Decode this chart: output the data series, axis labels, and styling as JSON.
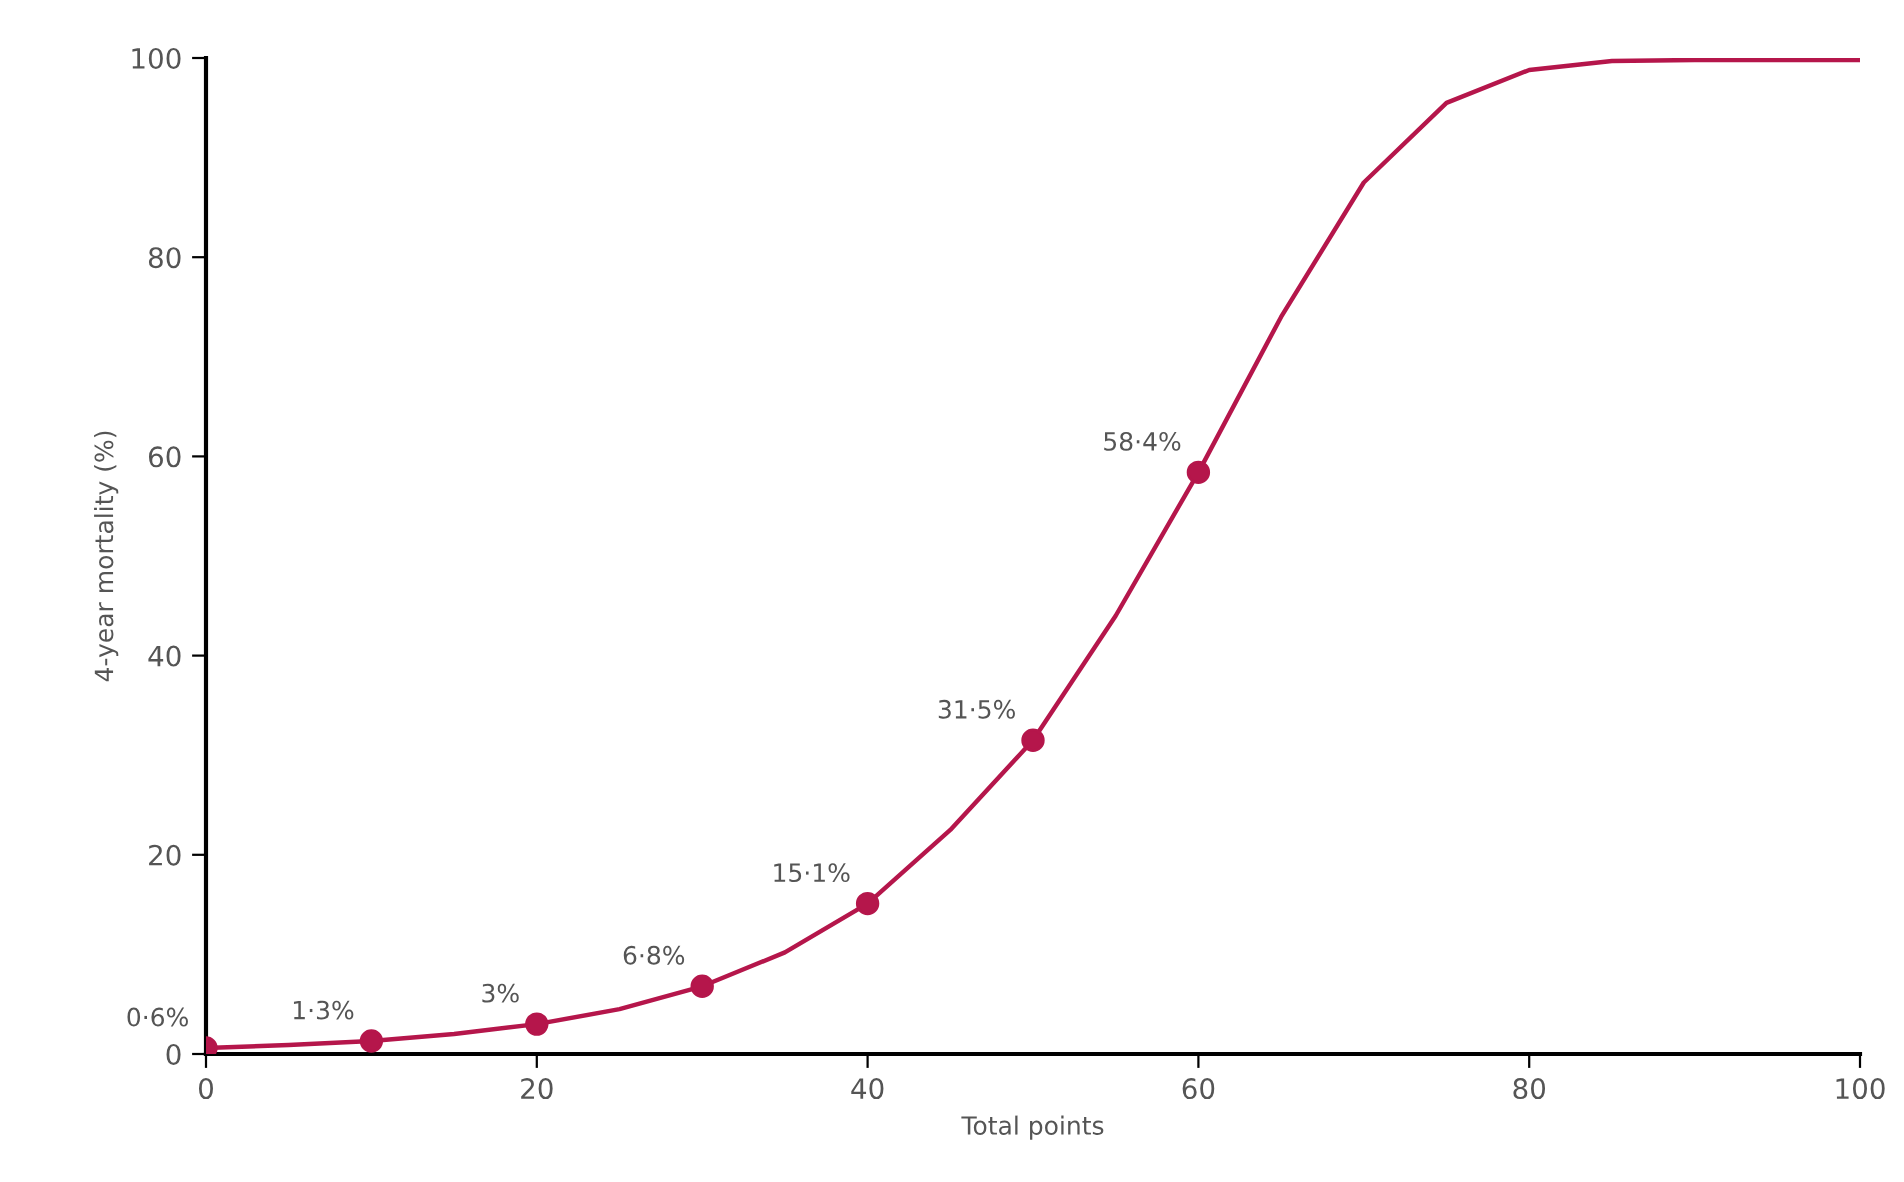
{
  "chart_data": {
    "type": "line",
    "xlabel": "Total points",
    "ylabel": "4-year mortality (%)",
    "xlim": [
      0,
      100
    ],
    "ylim": [
      0,
      100
    ],
    "xticks": [
      0,
      20,
      40,
      60,
      80,
      100
    ],
    "yticks": [
      0,
      20,
      40,
      60,
      80,
      100
    ],
    "grid": false,
    "series": [
      {
        "color": "#b5164b",
        "marker": "none",
        "x": [
          0,
          5,
          10,
          15,
          20,
          25,
          30,
          35,
          40,
          45,
          50,
          55,
          60,
          65,
          70,
          75,
          80,
          85,
          90,
          100
        ],
        "values": [
          0.6,
          0.9,
          1.3,
          2,
          3,
          4.5,
          6.8,
          10.2,
          15.1,
          22.5,
          31.5,
          44,
          58.4,
          74,
          87.5,
          95.5,
          98.8,
          99.7,
          99.8,
          99.8
        ]
      },
      {
        "type": "scatter",
        "color": "#b5164b",
        "marker": "circle",
        "x": [
          0,
          10,
          20,
          30,
          40,
          50,
          60
        ],
        "values": [
          0.6,
          1.3,
          3,
          6.8,
          15.1,
          31.5,
          58.4
        ],
        "value_labels": [
          "0·6%",
          "1·3%",
          "3%",
          "6·8%",
          "15·1%",
          "31·5%",
          "58·4%"
        ]
      }
    ]
  }
}
